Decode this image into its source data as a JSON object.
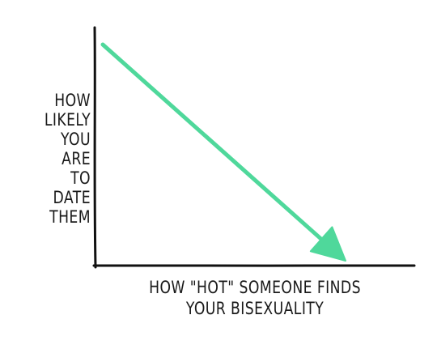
{
  "chart_data": {
    "type": "line",
    "title": "",
    "xlabel": "HOW \"HOT\" SOMEONE FINDS\nYOUR BISEXUALITY",
    "ylabel": "HOW\nLIKELY\nYOU ARE\nTO DATE\nTHEM",
    "series": [
      {
        "color": "#4fd89b",
        "x": [
          0,
          1
        ],
        "y": [
          1,
          0
        ]
      }
    ],
    "xlim": [
      0,
      1
    ],
    "ylim": [
      0,
      1
    ],
    "grid": false,
    "arrow_at_end": true,
    "axis_color": "#111111"
  }
}
